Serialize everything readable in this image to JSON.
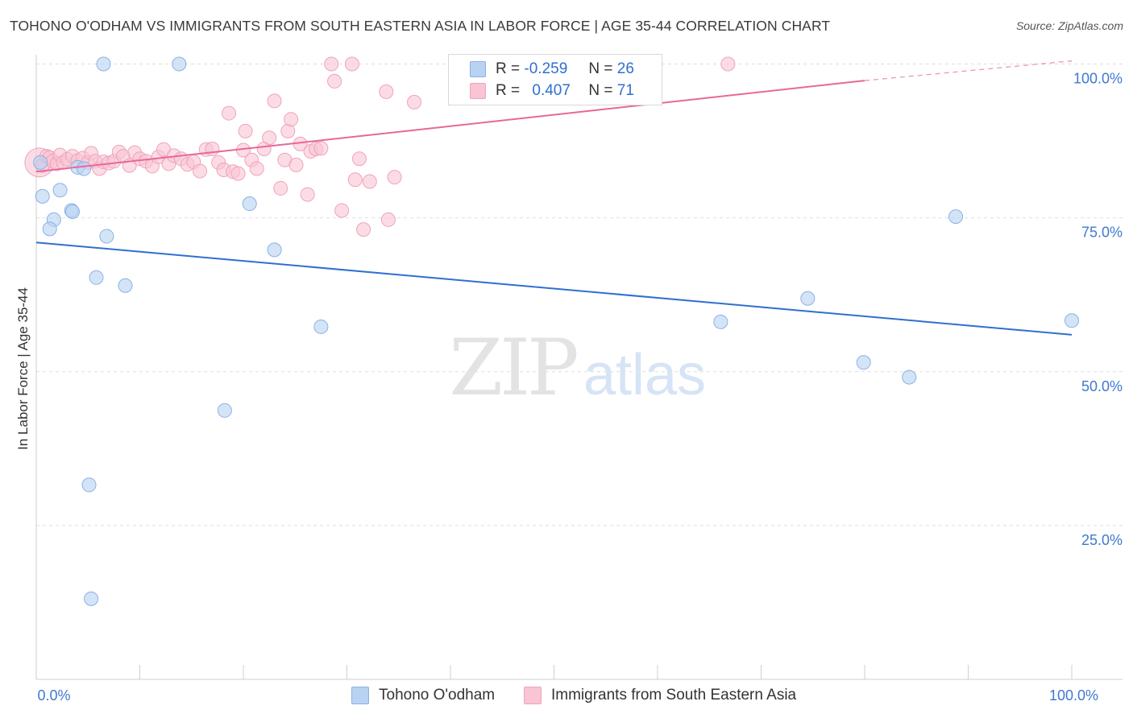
{
  "title": "TOHONO O'ODHAM VS IMMIGRANTS FROM SOUTH EASTERN ASIA IN LABOR FORCE | AGE 35-44 CORRELATION CHART",
  "source": "Source: ZipAtlas.com",
  "watermark": {
    "zip": "ZIP",
    "atlas": "atlas"
  },
  "legend": {
    "row1": {
      "r_label": "R =",
      "r_value": "-0.259",
      "n_label": "N =",
      "n_value": "26"
    },
    "row2": {
      "r_label": "R =",
      "r_value": "0.407",
      "n_label": "N =",
      "n_value": "71"
    }
  },
  "colors": {
    "blue_fill": "#b8d2f2",
    "blue_stroke": "#8ab1e6",
    "blue_line": "#2f6fd0",
    "pink_fill": "#f9c4d3",
    "pink_stroke": "#f0a3ba",
    "pink_line": "#e8679a",
    "axis_text": "#3f78d1"
  },
  "chart_data": {
    "type": "scatter",
    "ylabel": "In Labor Force | Age 35-44",
    "xlim": [
      0,
      100
    ],
    "ylim": [
      0,
      104
    ],
    "x_ticks": [
      {
        "value": 0,
        "label": "0.0%"
      },
      {
        "value": 100,
        "label": "100.0%"
      }
    ],
    "y_ticks": [
      {
        "value": 25,
        "label": "25.0%"
      },
      {
        "value": 50,
        "label": "50.0%"
      },
      {
        "value": 75,
        "label": "75.0%"
      },
      {
        "value": 100,
        "label": "100.0%"
      }
    ],
    "grid": true,
    "series": [
      {
        "name": "Tohono O'odham",
        "color": "blue",
        "trend": {
          "x0": 0,
          "y0": 71.0,
          "x1": 100,
          "y1": 56.0,
          "dashed_to": null
        },
        "points": [
          [
            6.5,
            100
          ],
          [
            13.8,
            100
          ],
          [
            0.4,
            84
          ],
          [
            4,
            83.2
          ],
          [
            4.6,
            83
          ],
          [
            0.6,
            78.5
          ],
          [
            2.3,
            79.5
          ],
          [
            1.7,
            74.7
          ],
          [
            3.4,
            76.2
          ],
          [
            3.5,
            76
          ],
          [
            1.3,
            73.2
          ],
          [
            6.8,
            72
          ],
          [
            20.6,
            77.3
          ],
          [
            23,
            69.8
          ],
          [
            5.8,
            65.3
          ],
          [
            8.6,
            64
          ],
          [
            27.5,
            57.3
          ],
          [
            18.2,
            43.7
          ],
          [
            5.1,
            31.6
          ],
          [
            5.3,
            13.1
          ],
          [
            88.8,
            75.2
          ],
          [
            74.5,
            61.9
          ],
          [
            66.1,
            58.1
          ],
          [
            79.9,
            51.5
          ],
          [
            84.3,
            49.1
          ],
          [
            100,
            58.3
          ]
        ]
      },
      {
        "name": "Immigrants from South Eastern Asia",
        "color": "pink",
        "trend": {
          "x0": 0,
          "y0": 82.5,
          "x1": 80,
          "y1": 97.3,
          "dashed_to": {
            "x": 100,
            "y": 100.5
          }
        },
        "points": [
          [
            0.3,
            84
          ],
          [
            0.6,
            83.5
          ],
          [
            1,
            85
          ],
          [
            1.3,
            84.8
          ],
          [
            1.6,
            84.2
          ],
          [
            2,
            83.8
          ],
          [
            2.3,
            85.2
          ],
          [
            2.6,
            84
          ],
          [
            3,
            84.5
          ],
          [
            3.5,
            85
          ],
          [
            4,
            84.3
          ],
          [
            4.5,
            84.7
          ],
          [
            5,
            84
          ],
          [
            5.3,
            85.5
          ],
          [
            5.7,
            84.2
          ],
          [
            6.1,
            83
          ],
          [
            6.5,
            84.1
          ],
          [
            7,
            83.9
          ],
          [
            7.5,
            84.2
          ],
          [
            8,
            85.7
          ],
          [
            8.4,
            85
          ],
          [
            9,
            83.5
          ],
          [
            9.5,
            85.6
          ],
          [
            10,
            84.6
          ],
          [
            10.6,
            84.2
          ],
          [
            11.2,
            83.4
          ],
          [
            11.8,
            84.9
          ],
          [
            12.3,
            86.1
          ],
          [
            12.8,
            83.8
          ],
          [
            13.3,
            85.1
          ],
          [
            14,
            84.6
          ],
          [
            14.6,
            83.7
          ],
          [
            15.2,
            84.1
          ],
          [
            15.8,
            82.6
          ],
          [
            16.4,
            86.1
          ],
          [
            17,
            86.2
          ],
          [
            17.6,
            84
          ],
          [
            18.1,
            82.8
          ],
          [
            18.6,
            92
          ],
          [
            19,
            82.5
          ],
          [
            19.5,
            82.2
          ],
          [
            20,
            86
          ],
          [
            20.2,
            89.1
          ],
          [
            20.8,
            84.4
          ],
          [
            21.3,
            83
          ],
          [
            22,
            86.2
          ],
          [
            22.5,
            88
          ],
          [
            23,
            94
          ],
          [
            23.6,
            79.8
          ],
          [
            24,
            84.4
          ],
          [
            24.3,
            89.1
          ],
          [
            24.6,
            91
          ],
          [
            25.1,
            83.6
          ],
          [
            25.5,
            87
          ],
          [
            26.2,
            78.8
          ],
          [
            26.5,
            85.8
          ],
          [
            27,
            86.2
          ],
          [
            27.5,
            86.3
          ],
          [
            28.5,
            100
          ],
          [
            28.8,
            97.2
          ],
          [
            29.5,
            76.2
          ],
          [
            30.5,
            100
          ],
          [
            30.8,
            81.2
          ],
          [
            31.2,
            84.6
          ],
          [
            31.6,
            73.1
          ],
          [
            32.2,
            80.9
          ],
          [
            33.8,
            95.5
          ],
          [
            34,
            74.7
          ],
          [
            34.6,
            81.6
          ],
          [
            36.5,
            93.8
          ],
          [
            66.8,
            100
          ]
        ]
      }
    ]
  }
}
